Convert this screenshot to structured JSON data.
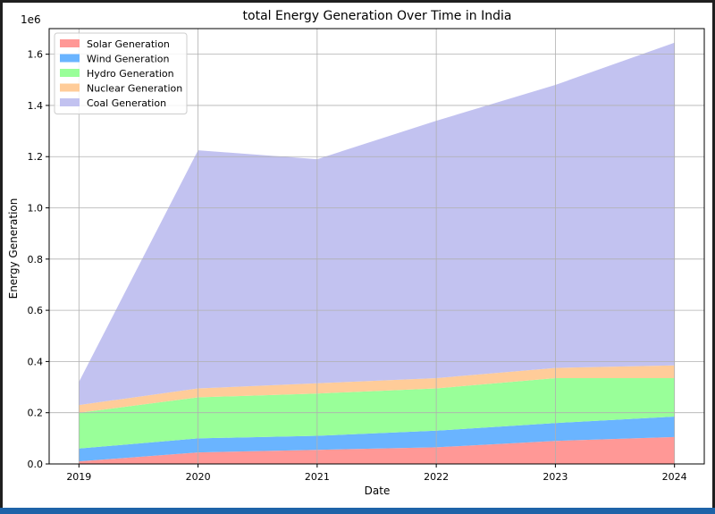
{
  "chart_data": {
    "type": "area",
    "stacked": true,
    "title": "total Energy Generation Over Time in India",
    "xlabel": "Date",
    "ylabel": "Energy Generation",
    "y_offset_label": "1e6",
    "x": [
      "2019",
      "2020",
      "2021",
      "2022",
      "2023",
      "2024"
    ],
    "xlim": [
      2018.75,
      2024.25
    ],
    "ylim": [
      0,
      1.7
    ],
    "yticks": [
      "0.0",
      "0.2",
      "0.4",
      "0.6",
      "0.8",
      "1.0",
      "1.2",
      "1.4",
      "1.6"
    ],
    "grid": true,
    "legend_position": "upper-left",
    "series": [
      {
        "name": "Solar Generation",
        "color": "#ff9896",
        "values": [
          0.01,
          0.045,
          0.055,
          0.065,
          0.09,
          0.105
        ]
      },
      {
        "name": "Wind Generation",
        "color": "#6ab4ff",
        "values": [
          0.05,
          0.055,
          0.055,
          0.065,
          0.07,
          0.08
        ]
      },
      {
        "name": "Hydro Generation",
        "color": "#99ff99",
        "values": [
          0.14,
          0.16,
          0.165,
          0.165,
          0.175,
          0.15
        ]
      },
      {
        "name": "Nuclear Generation",
        "color": "#ffcc99",
        "values": [
          0.03,
          0.035,
          0.04,
          0.04,
          0.04,
          0.05
        ]
      },
      {
        "name": "Coal Generation",
        "color": "#c2c2f0",
        "values": [
          0.09,
          0.93,
          0.875,
          1.005,
          1.105,
          1.26
        ]
      }
    ]
  }
}
